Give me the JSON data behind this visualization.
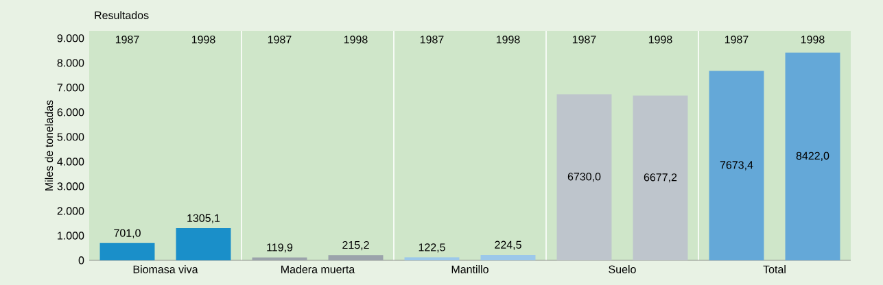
{
  "chart_data": {
    "type": "bar",
    "title": "Resultados",
    "ylabel": "Miles de toneladas",
    "categories": [
      "Biomasa viva",
      "Madera muerta",
      "Mantillo",
      "Suelo",
      "Total"
    ],
    "series": [
      {
        "name": "1987",
        "colors": [
          "#1a8fc9",
          "#9ba3ab",
          "#9cc8ea",
          "#bec5cc",
          "#64a8d8"
        ],
        "values": [
          701.0,
          119.9,
          122.5,
          6730.0,
          7673.4
        ],
        "value_labels": [
          "701,0",
          "119,9",
          "122,5",
          "6730,0",
          "7673,4"
        ]
      },
      {
        "name": "1998",
        "colors": [
          "#1a8fc9",
          "#9ba3ab",
          "#9cc8ea",
          "#bec5cc",
          "#64a8d8"
        ],
        "values": [
          1305.1,
          215.2,
          224.5,
          6677.2,
          8422.0
        ],
        "value_labels": [
          "1305,1",
          "215,2",
          "224,5",
          "6677,2",
          "8422,0"
        ]
      }
    ],
    "ylim": [
      0,
      9300
    ],
    "yticks": [
      0,
      {
        "value": 1000,
        "label": "1.000"
      },
      {
        "value": 2000,
        "label": "2.000"
      },
      {
        "value": 3000,
        "label": "3.000"
      },
      {
        "value": 4000,
        "label": "4.000"
      },
      {
        "value": 5000,
        "label": "5.000"
      },
      {
        "value": 6000,
        "label": "6.000"
      },
      {
        "value": 7000,
        "label": "7.000"
      },
      {
        "value": 8000,
        "label": "8.000"
      },
      {
        "value": 9000,
        "label": "9.000"
      }
    ],
    "grid": "x"
  }
}
